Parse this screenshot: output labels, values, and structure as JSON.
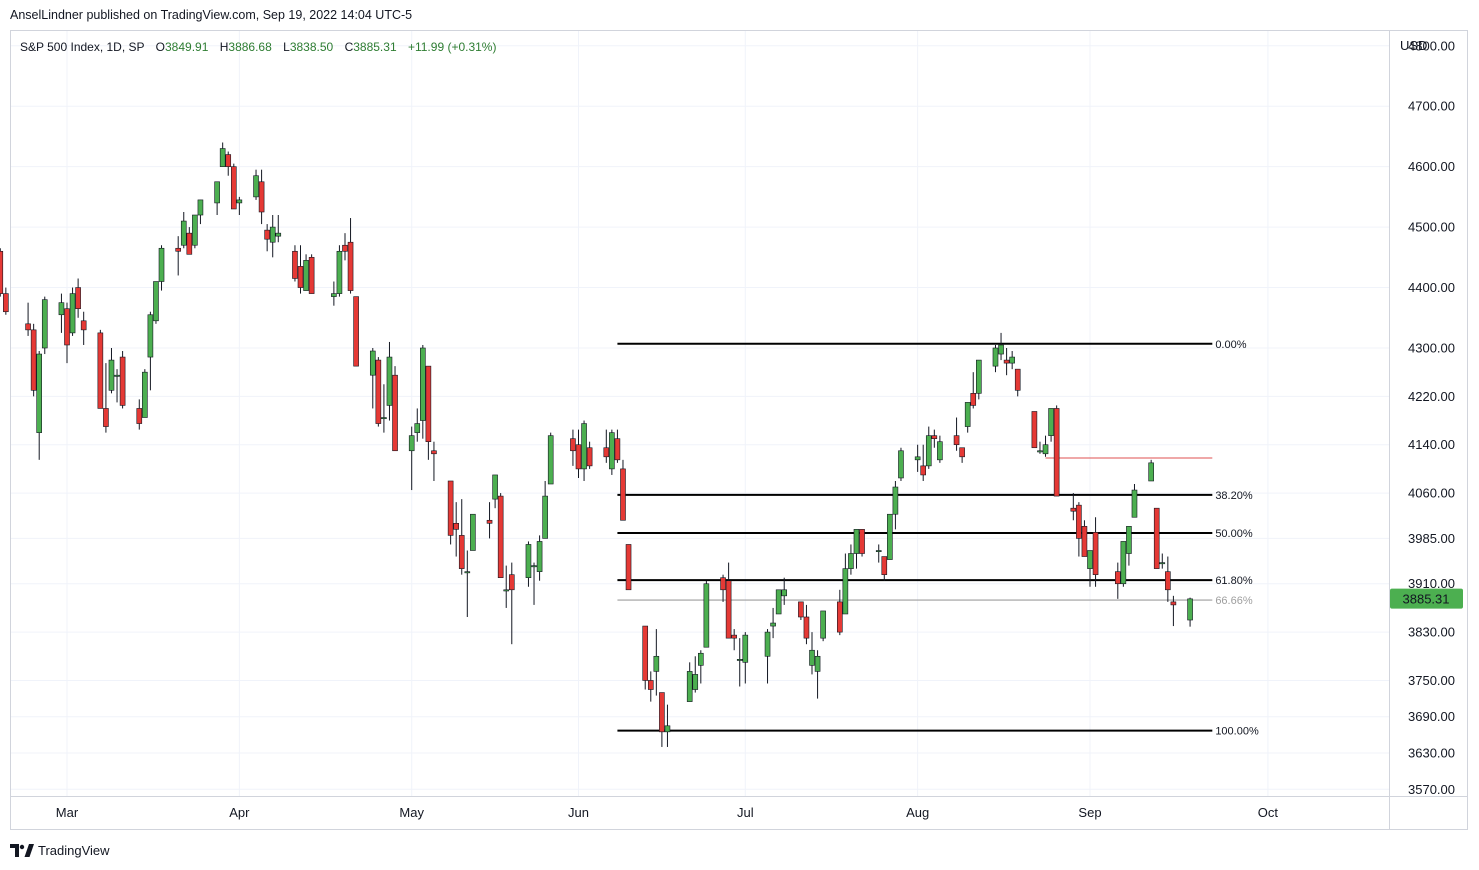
{
  "header": {
    "publish_line": "AnselLindner published on TradingView.com, Sep 19, 2022 14:04 UTC-5"
  },
  "legend": {
    "symbol": "S&P 500 Index, 1D, SP",
    "open_label": "O",
    "open": "3849.91",
    "high_label": "H",
    "high": "3886.68",
    "low_label": "L",
    "low": "3838.50",
    "close_label": "C",
    "close": "3885.31",
    "change": "+11.99 (+0.31%)"
  },
  "axis": {
    "currency": "USD",
    "current_price": "3885.31"
  },
  "footer": {
    "brand": "TradingView"
  },
  "colors": {
    "up": "#4caf50",
    "down": "#e53935",
    "wick": "#131722",
    "grid": "#f0f3fa",
    "fib": "#000000",
    "fib_current": "#9e9e9e",
    "resistance": "#e57373",
    "price_tag": "#4caf50",
    "legend_value": "#2e7d32"
  },
  "chart_data": {
    "type": "candlestick",
    "title": "S&P 500 Index, 1D, SP",
    "ylabel": "USD",
    "ylim": [
      3570,
      4870
    ],
    "y_ticks": [
      {
        "v": 4800,
        "label": "4800.00"
      },
      {
        "v": 4700,
        "label": "4700.00"
      },
      {
        "v": 4600,
        "label": "4600.00"
      },
      {
        "v": 4500,
        "label": "4500.00"
      },
      {
        "v": 4400,
        "label": "4400.00"
      },
      {
        "v": 4300,
        "label": "4300.00"
      },
      {
        "v": 4220,
        "label": "4220.00"
      },
      {
        "v": 4140,
        "label": "4140.00"
      },
      {
        "v": 4060,
        "label": "4060.00"
      },
      {
        "v": 3985,
        "label": "3985.00"
      },
      {
        "v": 3910,
        "label": "3910.00"
      },
      {
        "v": 3830,
        "label": "3830.00"
      },
      {
        "v": 3750,
        "label": "3750.00"
      },
      {
        "v": 3690,
        "label": "3690.00"
      },
      {
        "v": 3630,
        "label": "3630.00"
      },
      {
        "v": 3570,
        "label": "3570.00"
      }
    ],
    "x_ticks": [
      {
        "date": "2022-03-01",
        "label": "Mar"
      },
      {
        "date": "2022-04-01",
        "label": "Apr"
      },
      {
        "date": "2022-05-02",
        "label": "May"
      },
      {
        "date": "2022-06-01",
        "label": "Jun"
      },
      {
        "date": "2022-07-01",
        "label": "Jul"
      },
      {
        "date": "2022-08-01",
        "label": "Aug"
      },
      {
        "date": "2022-09-01",
        "label": "Sep"
      },
      {
        "date": "2022-10-03",
        "label": "Oct"
      }
    ],
    "x_range": [
      "2022-02-17",
      "2022-10-12"
    ],
    "fib_levels": [
      {
        "label": "0.00%",
        "price": 4307
      },
      {
        "label": "38.20%",
        "price": 4057
      },
      {
        "label": "50.00%",
        "price": 3994
      },
      {
        "label": "61.80%",
        "price": 3916
      },
      {
        "label": "66.66%",
        "price": 3883
      },
      {
        "label": "100.00%",
        "price": 3667
      }
    ],
    "fib_start": "2022-06-08",
    "fib_end": "2022-09-23",
    "resistance_line": {
      "price": 4118,
      "start": "2022-08-24",
      "end": "2022-09-23"
    },
    "candles": [
      [
        "2022-02-17",
        4460,
        4465,
        4385,
        4390
      ],
      [
        "2022-02-18",
        4390,
        4400,
        4355,
        4360
      ],
      [
        "2022-02-22",
        4340,
        4375,
        4320,
        4330
      ],
      [
        "2022-02-23",
        4330,
        4340,
        4220,
        4230
      ],
      [
        "2022-02-24",
        4160,
        4295,
        4115,
        4290
      ],
      [
        "2022-02-25",
        4300,
        4385,
        4290,
        4380
      ],
      [
        "2022-02-28",
        4355,
        4390,
        4325,
        4375
      ],
      [
        "2022-03-01",
        4365,
        4375,
        4275,
        4305
      ],
      [
        "2022-03-02",
        4325,
        4400,
        4320,
        4390
      ],
      [
        "2022-03-03",
        4400,
        4415,
        4350,
        4365
      ],
      [
        "2022-03-04",
        4345,
        4360,
        4305,
        4330
      ],
      [
        "2022-03-07",
        4325,
        4330,
        4200,
        4200
      ],
      [
        "2022-03-08",
        4200,
        4275,
        4160,
        4170
      ],
      [
        "2022-03-09",
        4230,
        4300,
        4225,
        4280
      ],
      [
        "2022-03-10",
        4255,
        4265,
        4210,
        4255
      ],
      [
        "2022-03-11",
        4285,
        4295,
        4200,
        4205
      ],
      [
        "2022-03-14",
        4200,
        4215,
        4165,
        4175
      ],
      [
        "2022-03-15",
        4185,
        4265,
        4185,
        4260
      ],
      [
        "2022-03-16",
        4285,
        4360,
        4230,
        4355
      ],
      [
        "2022-03-17",
        4345,
        4410,
        4340,
        4410
      ],
      [
        "2022-03-18",
        4410,
        4470,
        4395,
        4465
      ],
      [
        "2022-03-21",
        4465,
        4485,
        4420,
        4460
      ],
      [
        "2022-03-22",
        4470,
        4525,
        4465,
        4510
      ],
      [
        "2022-03-23",
        4490,
        4500,
        4455,
        4455
      ],
      [
        "2022-03-24",
        4470,
        4520,
        4465,
        4520
      ],
      [
        "2022-03-25",
        4520,
        4545,
        4505,
        4545
      ],
      [
        "2022-03-28",
        4540,
        4575,
        4520,
        4575
      ],
      [
        "2022-03-29",
        4600,
        4640,
        4600,
        4630
      ],
      [
        "2022-03-30",
        4620,
        4625,
        4585,
        4600
      ],
      [
        "2022-03-31",
        4600,
        4605,
        4530,
        4530
      ],
      [
        "2022-04-01",
        4540,
        4550,
        4520,
        4545
      ],
      [
        "2022-04-04",
        4550,
        4595,
        4545,
        4585
      ],
      [
        "2022-04-05",
        4575,
        4595,
        4505,
        4525
      ],
      [
        "2022-04-06",
        4495,
        4505,
        4460,
        4480
      ],
      [
        "2022-04-07",
        4475,
        4520,
        4450,
        4500
      ],
      [
        "2022-04-08",
        4485,
        4520,
        4475,
        4490
      ],
      [
        "2022-04-11",
        4460,
        4470,
        4410,
        4415
      ],
      [
        "2022-04-12",
        4435,
        4470,
        4390,
        4400
      ],
      [
        "2022-04-13",
        4395,
        4455,
        4395,
        4445
      ],
      [
        "2022-04-14",
        4450,
        4455,
        4390,
        4390
      ],
      [
        "2022-04-18",
        4385,
        4410,
        4370,
        4390
      ],
      [
        "2022-04-19",
        4390,
        4470,
        4385,
        4460
      ],
      [
        "2022-04-20",
        4470,
        4490,
        4445,
        4460
      ],
      [
        "2022-04-21",
        4475,
        4515,
        4390,
        4395
      ],
      [
        "2022-04-22",
        4385,
        4385,
        4270,
        4270
      ],
      [
        "2022-04-25",
        4255,
        4300,
        4200,
        4295
      ],
      [
        "2022-04-26",
        4280,
        4285,
        4170,
        4175
      ],
      [
        "2022-04-27",
        4185,
        4240,
        4160,
        4185
      ],
      [
        "2022-04-28",
        4205,
        4310,
        4180,
        4285
      ],
      [
        "2022-04-29",
        4255,
        4270,
        4130,
        4130
      ],
      [
        "2022-05-02",
        4130,
        4170,
        4065,
        4155
      ],
      [
        "2022-05-03",
        4160,
        4200,
        4145,
        4175
      ],
      [
        "2022-05-04",
        4180,
        4305,
        4150,
        4300
      ],
      [
        "2022-05-05",
        4270,
        4270,
        4115,
        4145
      ],
      [
        "2022-05-06",
        4130,
        4145,
        4080,
        4125
      ],
      [
        "2022-05-09",
        4080,
        4080,
        3975,
        3990
      ],
      [
        "2022-05-10",
        4010,
        4045,
        3955,
        4000
      ],
      [
        "2022-05-11",
        3990,
        4050,
        3925,
        3935
      ],
      [
        "2022-05-12",
        3930,
        3965,
        3855,
        3930
      ],
      [
        "2022-05-13",
        3965,
        4025,
        3965,
        4025
      ],
      [
        "2022-05-16",
        4015,
        4045,
        3985,
        4010
      ],
      [
        "2022-05-17",
        4050,
        4090,
        4035,
        4090
      ],
      [
        "2022-05-18",
        4055,
        4060,
        3920,
        3920
      ],
      [
        "2022-05-19",
        3900,
        3940,
        3870,
        3900
      ],
      [
        "2022-05-20",
        3925,
        3945,
        3810,
        3900
      ],
      [
        "2022-05-23",
        3920,
        3980,
        3905,
        3975
      ],
      [
        "2022-05-24",
        3940,
        3945,
        3875,
        3940
      ],
      [
        "2022-05-25",
        3930,
        3990,
        3915,
        3980
      ],
      [
        "2022-05-26",
        3985,
        4080,
        3985,
        4055
      ],
      [
        "2022-05-27",
        4075,
        4160,
        4075,
        4155
      ],
      [
        "2022-05-31",
        4150,
        4165,
        4105,
        4130
      ],
      [
        "2022-06-01",
        4140,
        4165,
        4085,
        4100
      ],
      [
        "2022-06-02",
        4100,
        4180,
        4080,
        4175
      ],
      [
        "2022-06-03",
        4135,
        4145,
        4100,
        4105
      ],
      [
        "2022-06-06",
        4135,
        4165,
        4110,
        4120
      ],
      [
        "2022-06-07",
        4100,
        4165,
        4090,
        4160
      ],
      [
        "2022-06-08",
        4150,
        4165,
        4110,
        4115
      ],
      [
        "2022-06-09",
        4100,
        4115,
        4015,
        4015
      ],
      [
        "2022-06-10",
        3975,
        3975,
        3900,
        3900
      ],
      [
        "2022-06-13",
        3840,
        3840,
        3735,
        3750
      ],
      [
        "2022-06-14",
        3750,
        3765,
        3715,
        3735
      ],
      [
        "2022-06-15",
        3765,
        3835,
        3725,
        3790
      ],
      [
        "2022-06-16",
        3730,
        3730,
        3640,
        3665
      ],
      [
        "2022-06-17",
        3665,
        3710,
        3640,
        3675
      ],
      [
        "2022-06-21",
        3715,
        3780,
        3715,
        3765
      ],
      [
        "2022-06-22",
        3735,
        3790,
        3730,
        3760
      ],
      [
        "2022-06-23",
        3775,
        3800,
        3745,
        3795
      ],
      [
        "2022-06-24",
        3805,
        3915,
        3805,
        3910
      ],
      [
        "2022-06-27",
        3920,
        3925,
        3880,
        3900
      ],
      [
        "2022-06-28",
        3915,
        3945,
        3820,
        3820
      ],
      [
        "2022-06-29",
        3825,
        3835,
        3800,
        3820
      ],
      [
        "2022-06-30",
        3785,
        3820,
        3740,
        3785
      ],
      [
        "2022-07-01",
        3780,
        3830,
        3745,
        3825
      ],
      [
        "2022-07-05",
        3790,
        3835,
        3745,
        3830
      ],
      [
        "2022-07-06",
        3840,
        3870,
        3820,
        3845
      ],
      [
        "2022-07-07",
        3860,
        3900,
        3860,
        3900
      ],
      [
        "2022-07-08",
        3890,
        3920,
        3875,
        3900
      ],
      [
        "2022-07-11",
        3880,
        3880,
        3850,
        3855
      ],
      [
        "2022-07-12",
        3855,
        3875,
        3810,
        3820
      ],
      [
        "2022-07-13",
        3775,
        3830,
        3760,
        3800
      ],
      [
        "2022-07-14",
        3765,
        3800,
        3720,
        3790
      ],
      [
        "2022-07-15",
        3820,
        3865,
        3815,
        3865
      ],
      [
        "2022-07-18",
        3880,
        3900,
        3825,
        3830
      ],
      [
        "2022-07-19",
        3860,
        3960,
        3860,
        3935
      ],
      [
        "2022-07-20",
        3935,
        3975,
        3925,
        3960
      ],
      [
        "2022-07-21",
        3960,
        4000,
        3935,
        4000
      ],
      [
        "2022-07-22",
        4000,
        4000,
        3955,
        3960
      ],
      [
        "2022-07-25",
        3965,
        3975,
        3945,
        3965
      ],
      [
        "2022-07-26",
        3955,
        3955,
        3915,
        3925
      ],
      [
        "2022-07-27",
        3950,
        4025,
        3950,
        4025
      ],
      [
        "2022-07-28",
        4025,
        4080,
        4000,
        4070
      ],
      [
        "2022-07-29",
        4085,
        4135,
        4080,
        4130
      ],
      [
        "2022-08-01",
        4115,
        4140,
        4095,
        4120
      ],
      [
        "2022-08-02",
        4105,
        4140,
        4080,
        4090
      ],
      [
        "2022-08-03",
        4105,
        4170,
        4100,
        4155
      ],
      [
        "2022-08-04",
        4155,
        4165,
        4135,
        4150
      ],
      [
        "2022-08-05",
        4115,
        4155,
        4110,
        4145
      ],
      [
        "2022-08-08",
        4155,
        4185,
        4130,
        4140
      ],
      [
        "2022-08-09",
        4135,
        4135,
        4110,
        4120
      ],
      [
        "2022-08-10",
        4170,
        4210,
        4160,
        4210
      ],
      [
        "2022-08-11",
        4225,
        4260,
        4200,
        4205
      ],
      [
        "2022-08-12",
        4225,
        4280,
        4215,
        4280
      ],
      [
        "2022-08-15",
        4270,
        4305,
        4260,
        4300
      ],
      [
        "2022-08-16",
        4290,
        4325,
        4280,
        4305
      ],
      [
        "2022-08-17",
        4280,
        4300,
        4255,
        4275
      ],
      [
        "2022-08-18",
        4275,
        4295,
        4265,
        4285
      ],
      [
        "2022-08-19",
        4265,
        4265,
        4220,
        4230
      ],
      [
        "2022-08-22",
        4195,
        4195,
        4135,
        4135
      ],
      [
        "2022-08-23",
        4130,
        4145,
        4125,
        4130
      ],
      [
        "2022-08-24",
        4125,
        4155,
        4120,
        4140
      ],
      [
        "2022-08-25",
        4155,
        4200,
        4145,
        4200
      ],
      [
        "2022-08-26",
        4200,
        4205,
        4055,
        4055
      ],
      [
        "2022-08-29",
        4035,
        4060,
        4015,
        4030
      ],
      [
        "2022-08-30",
        4040,
        4045,
        3955,
        3985
      ],
      [
        "2022-08-31",
        4005,
        4015,
        3955,
        3955
      ],
      [
        "2022-09-01",
        3935,
        3965,
        3905,
        3965
      ],
      [
        "2022-09-02",
        3995,
        4020,
        3905,
        3925
      ],
      [
        "2022-09-06",
        3930,
        3945,
        3885,
        3910
      ],
      [
        "2022-09-07",
        3910,
        3980,
        3905,
        3980
      ],
      [
        "2022-09-08",
        3960,
        4005,
        3940,
        4005
      ],
      [
        "2022-09-09",
        4020,
        4075,
        4020,
        4065
      ],
      [
        "2022-09-12",
        4080,
        4115,
        4080,
        4110
      ],
      [
        "2022-09-13",
        4035,
        4035,
        3935,
        3935
      ],
      [
        "2022-09-14",
        3945,
        3960,
        3935,
        3945
      ],
      [
        "2022-09-15",
        3930,
        3955,
        3880,
        3900
      ],
      [
        "2022-09-16",
        3880,
        3890,
        3840,
        3875
      ],
      [
        "2022-09-19",
        3850,
        3887,
        3839,
        3885
      ]
    ]
  }
}
